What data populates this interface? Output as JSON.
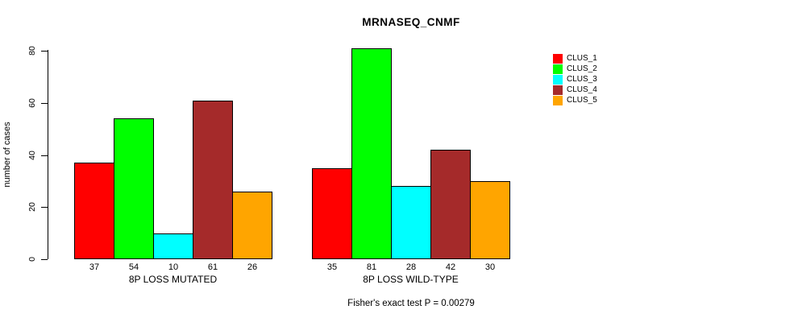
{
  "chart_data": {
    "type": "bar",
    "title": "MRNASEQ_CNMF",
    "ylabel": "number of cases",
    "xlabel": "",
    "ylim": [
      0,
      80
    ],
    "yticks": [
      0,
      20,
      40,
      60,
      80
    ],
    "grid": false,
    "legend_position": "right",
    "bar_values_shown": true,
    "annotation": "Fisher's exact test P = 0.00279",
    "categories": [
      "8P LOSS MUTATED",
      "8P LOSS WILD-TYPE"
    ],
    "series": [
      {
        "name": "CLUS_1",
        "color": "#FF0000",
        "values": [
          37,
          35
        ]
      },
      {
        "name": "CLUS_2",
        "color": "#00FF00",
        "values": [
          54,
          81
        ]
      },
      {
        "name": "CLUS_3",
        "color": "#00FFFF",
        "values": [
          10,
          28
        ]
      },
      {
        "name": "CLUS_4",
        "color": "#A52A2A",
        "values": [
          61,
          42
        ]
      },
      {
        "name": "CLUS_5",
        "color": "#FFA500",
        "values": [
          26,
          30
        ]
      }
    ]
  }
}
